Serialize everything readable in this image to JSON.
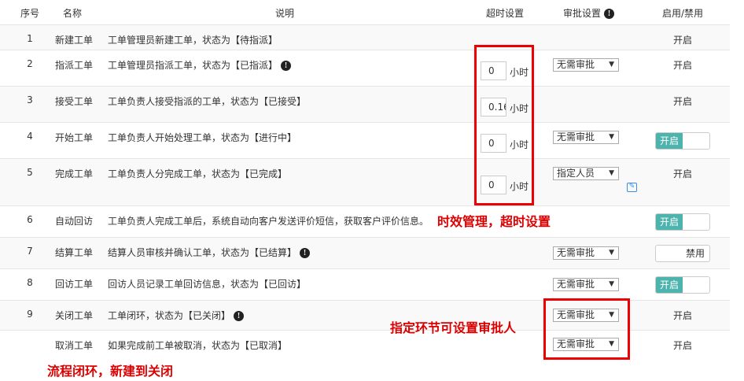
{
  "headers": {
    "no": "序号",
    "name": "名称",
    "desc": "说明",
    "timeout": "超时设置",
    "approval": "审批设置",
    "enable": "启用/禁用"
  },
  "unit": "小时",
  "rows": [
    {
      "no": "1",
      "name": "新建工单",
      "desc": "工单管理员新建工单，状态为【待指派】",
      "info": false,
      "timeout": null,
      "approval": null,
      "enable": "开启",
      "toggle": false
    },
    {
      "no": "2",
      "name": "指派工单",
      "desc": "工单管理员指派工单，状态为【已指派】",
      "info": true,
      "timeout": "0",
      "approval": "无需审批",
      "enable": "开启",
      "toggle": false
    },
    {
      "no": "3",
      "name": "接受工单",
      "desc": "工单负责人接受指派的工单，状态为【已接受】",
      "info": false,
      "timeout": "0.16",
      "approval": null,
      "enable": "开启",
      "toggle": false
    },
    {
      "no": "4",
      "name": "开始工单",
      "desc": "工单负责人开始处理工单，状态为【进行中】",
      "info": false,
      "timeout": "0",
      "approval": "无需审批",
      "enable": "开启",
      "toggle": true,
      "on": true
    },
    {
      "no": "5",
      "name": "完成工单",
      "desc": "工单负责人分完成工单，状态为【已完成】",
      "info": false,
      "timeout": "0",
      "approval": "指定人员",
      "enable": "开启",
      "toggle": false,
      "edit": true
    },
    {
      "no": "6",
      "name": "自动回访",
      "desc": "工单负责人完成工单后，系统自动向客户发送评价短信，获取客户评价信息。",
      "info": false,
      "timeout": null,
      "approval": null,
      "enable": "开启",
      "toggle": true,
      "on": true
    },
    {
      "no": "7",
      "name": "结算工单",
      "desc": "结算人员审核并确认工单，状态为【已结算】",
      "info": true,
      "timeout": null,
      "approval": "无需审批",
      "enable": "禁用",
      "toggle": true,
      "on": false
    },
    {
      "no": "8",
      "name": "回访工单",
      "desc": "回访人员记录工单回访信息，状态为【已回访】",
      "info": false,
      "timeout": null,
      "approval": "无需审批",
      "enable": "开启",
      "toggle": true,
      "on": true
    },
    {
      "no": "9",
      "name": "关闭工单",
      "desc": "工单闭环，状态为【已关闭】",
      "info": true,
      "timeout": null,
      "approval": "无需审批",
      "enable": "开启",
      "toggle": false
    },
    {
      "no": "",
      "name": "取消工单",
      "desc": "如果完成前工单被取消，状态为【已取消】",
      "info": false,
      "timeout": null,
      "approval": "无需审批",
      "enable": "开启",
      "toggle": false
    }
  ],
  "annotations": {
    "timeout": "时效管理，超时设置",
    "approver": "指定环节可设置审批人",
    "closed_loop": "流程闭环，新建到关闭"
  },
  "colors": {
    "toggle_on": "#4cb3ad",
    "annotation": "#dd0000"
  }
}
